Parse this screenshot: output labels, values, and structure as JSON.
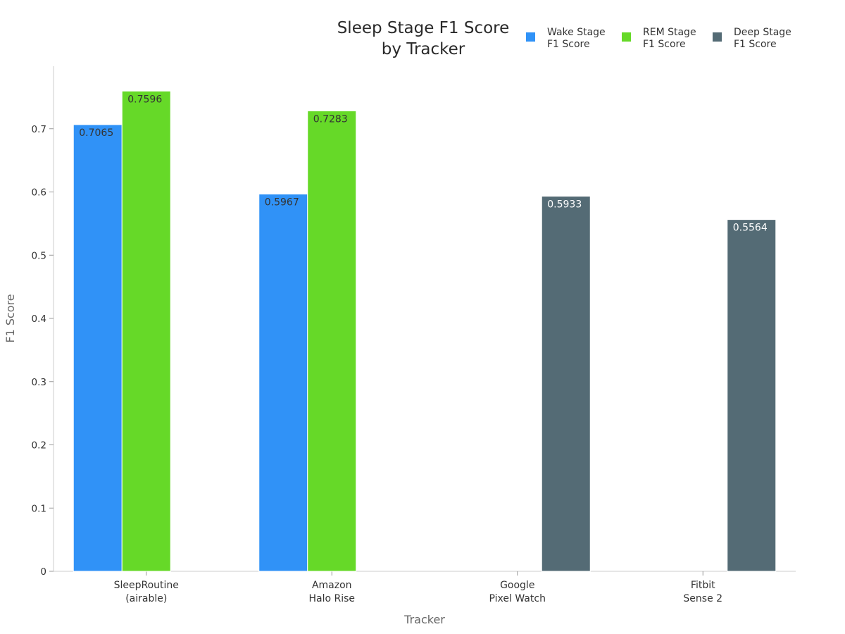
{
  "chart_data": {
    "type": "bar",
    "title": [
      "Sleep Stage F1 Score",
      "by Tracker"
    ],
    "xlabel": "Tracker",
    "ylabel": "F1 Score",
    "ylim": [
      0,
      0.8
    ],
    "yticks": [
      "0",
      "0.1",
      "0.2",
      "0.3",
      "0.4",
      "0.5",
      "0.6",
      "0.7"
    ],
    "categories": [
      [
        "SleepRoutine",
        "(airable)"
      ],
      [
        "Amazon",
        "Halo Rise"
      ],
      [
        "Google",
        "Pixel Watch"
      ],
      [
        "Fitbit",
        "Sense 2"
      ]
    ],
    "series": [
      {
        "name": [
          "Wake Stage",
          "F1 Score"
        ],
        "color": "#3092f7",
        "label_color": "#333333",
        "values": [
          0.7065,
          0.5967,
          null,
          null
        ],
        "labels": [
          "0.7065",
          "0.5967",
          "",
          ""
        ]
      },
      {
        "name": [
          "REM Stage",
          "F1 Score"
        ],
        "color": "#66d928",
        "label_color": "#333333",
        "values": [
          0.7596,
          0.7283,
          null,
          null
        ],
        "labels": [
          "0.7596",
          "0.7283",
          "",
          ""
        ]
      },
      {
        "name": [
          "Deep Stage",
          "F1 Score"
        ],
        "color": "#546b75",
        "label_color": "#ffffff",
        "values": [
          null,
          null,
          0.5933,
          0.5564
        ],
        "labels": [
          "",
          "",
          "0.5933",
          "0.5564"
        ]
      }
    ],
    "legend": "top-right",
    "grid": false
  }
}
